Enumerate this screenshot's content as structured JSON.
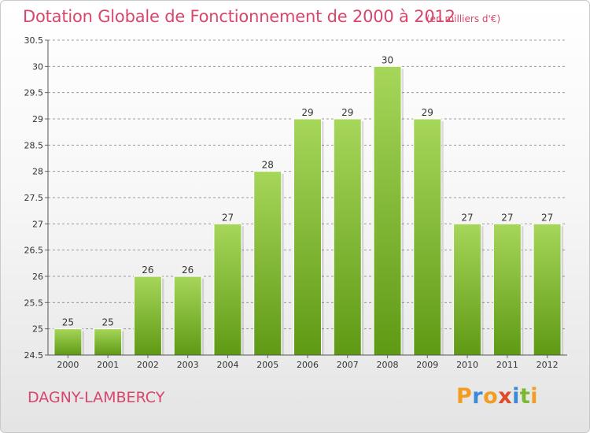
{
  "chart_data": {
    "type": "bar",
    "title": "Dotation Globale de Fonctionnement de 2000 à 2012",
    "unit_note": "(en milliers d'€)",
    "categories": [
      "2000",
      "2001",
      "2002",
      "2003",
      "2004",
      "2005",
      "2006",
      "2007",
      "2008",
      "2009",
      "2010",
      "2011",
      "2012"
    ],
    "values": [
      25,
      25,
      26,
      26,
      27,
      28,
      29,
      29,
      30,
      29,
      27,
      27,
      27
    ],
    "data_labels": [
      "25",
      "25",
      "26",
      "26",
      "27",
      "28",
      "29",
      "29",
      "30",
      "29",
      "27",
      "27",
      "27"
    ],
    "ylim": [
      24.5,
      30.5
    ],
    "yticks": [
      "24.5",
      "25",
      "25.5",
      "26",
      "26.5",
      "27",
      "27.5",
      "28",
      "28.5",
      "29",
      "29.5",
      "30",
      "30.5"
    ],
    "xlabel": "",
    "ylabel": "",
    "grid": true,
    "bar_color_top": "#a6d65a",
    "bar_color_bottom": "#5f9a14",
    "grid_color": "#9a9a9a"
  },
  "footer": {
    "commune": "DAGNY-LAMBERCY",
    "logo_letters": [
      "P",
      "r",
      "o",
      "x",
      "i",
      "t",
      "i"
    ],
    "logo_colors": [
      "#f39c1f",
      "#3b8ad9",
      "#f39c1f",
      "#e04a2a",
      "#3b8ad9",
      "#7cb82f",
      "#f39c1f"
    ]
  }
}
